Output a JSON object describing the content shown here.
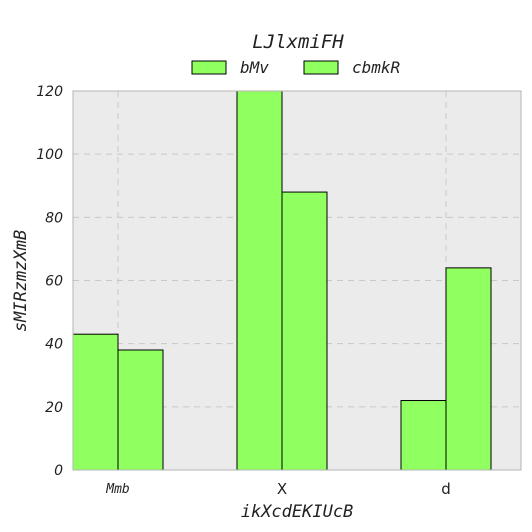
{
  "chart_data": {
    "type": "bar",
    "title": "LJlxmiFH",
    "xlabel": "ikXcdEKIUcB",
    "ylabel": "sMIRzmzXmB",
    "categories": [
      "Mmb",
      "X",
      "d"
    ],
    "series": [
      {
        "name": "bMv",
        "values": [
          43,
          120,
          22
        ]
      },
      {
        "name": "cbmkR",
        "values": [
          38,
          88,
          64
        ]
      }
    ],
    "ylim": [
      0,
      120
    ],
    "yticks": [
      0,
      20,
      40,
      60,
      80,
      100,
      120
    ],
    "grid": true,
    "legend_position": "top-center",
    "colors": {
      "bar_fill": "#90ff60",
      "bar_edge": "#000000",
      "plot_bg": "#ebebeb",
      "grid": "#c8c8c8"
    }
  }
}
